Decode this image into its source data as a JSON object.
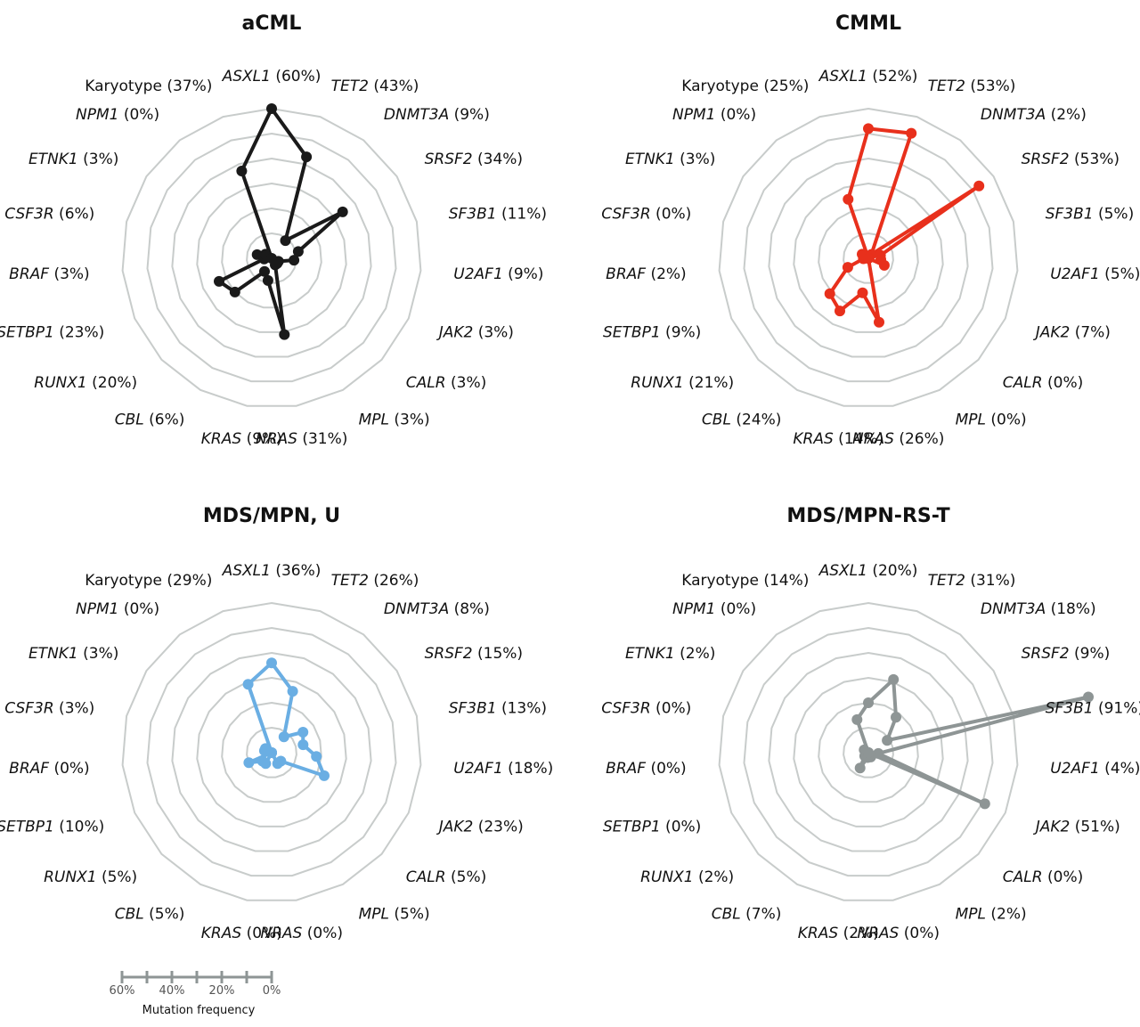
{
  "chart_data": [
    {
      "type": "radar",
      "title": "aCML",
      "color": "#1a1a1a",
      "rmax": 60,
      "axes": [
        {
          "name": "ASXL1",
          "italic": true,
          "pct": "(60%)",
          "value": 60
        },
        {
          "name": "TET2",
          "italic": true,
          "pct": "(43%)",
          "value": 43
        },
        {
          "name": "DNMT3A",
          "italic": true,
          "pct": "(9%)",
          "value": 9
        },
        {
          "name": "SRSF2",
          "italic": true,
          "pct": "(34%)",
          "value": 34
        },
        {
          "name": "SF3B1",
          "italic": true,
          "pct": "(11%)",
          "value": 11
        },
        {
          "name": "U2AF1",
          "italic": true,
          "pct": "(9%)",
          "value": 9
        },
        {
          "name": "JAK2",
          "italic": true,
          "pct": "(3%)",
          "value": 3
        },
        {
          "name": "CALR",
          "italic": true,
          "pct": "(3%)",
          "value": 3
        },
        {
          "name": "MPL",
          "italic": true,
          "pct": "(3%)",
          "value": 3
        },
        {
          "name": "NRAS",
          "italic": true,
          "pct": "(31%)",
          "value": 31
        },
        {
          "name": "KRAS",
          "italic": true,
          "pct": "(9%)",
          "value": 9
        },
        {
          "name": "CBL",
          "italic": true,
          "pct": "(6%)",
          "value": 6
        },
        {
          "name": "RUNX1",
          "italic": true,
          "pct": "(20%)",
          "value": 20
        },
        {
          "name": "SETBP1",
          "italic": true,
          "pct": "(23%)",
          "value": 23
        },
        {
          "name": "BRAF",
          "italic": true,
          "pct": "(3%)",
          "value": 3
        },
        {
          "name": "CSF3R",
          "italic": true,
          "pct": "(6%)",
          "value": 6
        },
        {
          "name": "ETNK1",
          "italic": true,
          "pct": "(3%)",
          "value": 3
        },
        {
          "name": "NPM1",
          "italic": true,
          "pct": "(0%)",
          "value": 0
        },
        {
          "name": "Karyotype",
          "italic": false,
          "pct": "(37%)",
          "value": 37
        }
      ]
    },
    {
      "type": "radar",
      "title": "CMML",
      "color": "#e8301c",
      "rmax": 60,
      "axes": [
        {
          "name": "ASXL1",
          "italic": true,
          "pct": "(52%)",
          "value": 52
        },
        {
          "name": "TET2",
          "italic": true,
          "pct": "(53%)",
          "value": 53
        },
        {
          "name": "DNMT3A",
          "italic": true,
          "pct": "(2%)",
          "value": 2
        },
        {
          "name": "SRSF2",
          "italic": true,
          "pct": "(53%)",
          "value": 53
        },
        {
          "name": "SF3B1",
          "italic": true,
          "pct": "(5%)",
          "value": 5
        },
        {
          "name": "U2AF1",
          "italic": true,
          "pct": "(5%)",
          "value": 5
        },
        {
          "name": "JAK2",
          "italic": true,
          "pct": "(7%)",
          "value": 7
        },
        {
          "name": "CALR",
          "italic": true,
          "pct": "(0%)",
          "value": 0
        },
        {
          "name": "MPL",
          "italic": true,
          "pct": "(0%)",
          "value": 0
        },
        {
          "name": "NRAS",
          "italic": true,
          "pct": "(26%)",
          "value": 26
        },
        {
          "name": "KRAS",
          "italic": true,
          "pct": "(14%)",
          "value": 14
        },
        {
          "name": "CBL",
          "italic": true,
          "pct": "(24%)",
          "value": 24
        },
        {
          "name": "RUNX1",
          "italic": true,
          "pct": "(21%)",
          "value": 21
        },
        {
          "name": "SETBP1",
          "italic": true,
          "pct": "(9%)",
          "value": 9
        },
        {
          "name": "BRAF",
          "italic": true,
          "pct": "(2%)",
          "value": 2
        },
        {
          "name": "CSF3R",
          "italic": true,
          "pct": "(0%)",
          "value": 0
        },
        {
          "name": "ETNK1",
          "italic": true,
          "pct": "(3%)",
          "value": 3
        },
        {
          "name": "NPM1",
          "italic": true,
          "pct": "(0%)",
          "value": 0
        },
        {
          "name": "Karyotype",
          "italic": false,
          "pct": "(25%)",
          "value": 25
        }
      ]
    },
    {
      "type": "radar",
      "title": "MDS/MPN, U",
      "color": "#6aaee3",
      "rmax": 60,
      "axes": [
        {
          "name": "ASXL1",
          "italic": true,
          "pct": "(36%)",
          "value": 36
        },
        {
          "name": "TET2",
          "italic": true,
          "pct": "(26%)",
          "value": 26
        },
        {
          "name": "DNMT3A",
          "italic": true,
          "pct": "(8%)",
          "value": 8
        },
        {
          "name": "SRSF2",
          "italic": true,
          "pct": "(15%)",
          "value": 15
        },
        {
          "name": "SF3B1",
          "italic": true,
          "pct": "(13%)",
          "value": 13
        },
        {
          "name": "U2AF1",
          "italic": true,
          "pct": "(18%)",
          "value": 18
        },
        {
          "name": "JAK2",
          "italic": true,
          "pct": "(23%)",
          "value": 23
        },
        {
          "name": "CALR",
          "italic": true,
          "pct": "(5%)",
          "value": 5
        },
        {
          "name": "MPL",
          "italic": true,
          "pct": "(5%)",
          "value": 5
        },
        {
          "name": "NRAS",
          "italic": true,
          "pct": "(0%)",
          "value": 0
        },
        {
          "name": "KRAS",
          "italic": true,
          "pct": "(0%)",
          "value": 0
        },
        {
          "name": "CBL",
          "italic": true,
          "pct": "(5%)",
          "value": 5
        },
        {
          "name": "RUNX1",
          "italic": true,
          "pct": "(5%)",
          "value": 5
        },
        {
          "name": "SETBP1",
          "italic": true,
          "pct": "(10%)",
          "value": 10
        },
        {
          "name": "BRAF",
          "italic": true,
          "pct": "(0%)",
          "value": 0
        },
        {
          "name": "CSF3R",
          "italic": true,
          "pct": "(3%)",
          "value": 3
        },
        {
          "name": "ETNK1",
          "italic": true,
          "pct": "(3%)",
          "value": 3
        },
        {
          "name": "NPM1",
          "italic": true,
          "pct": "(0%)",
          "value": 0
        },
        {
          "name": "Karyotype",
          "italic": false,
          "pct": "(29%)",
          "value": 29
        }
      ]
    },
    {
      "type": "radar",
      "title": "MDS/MPN-RS-T",
      "color": "#8e9595",
      "rmax": 60,
      "axes": [
        {
          "name": "ASXL1",
          "italic": true,
          "pct": "(20%)",
          "value": 20
        },
        {
          "name": "TET2",
          "italic": true,
          "pct": "(31%)",
          "value": 31
        },
        {
          "name": "DNMT3A",
          "italic": true,
          "pct": "(18%)",
          "value": 18
        },
        {
          "name": "SRSF2",
          "italic": true,
          "pct": "(9%)",
          "value": 9
        },
        {
          "name": "SF3B1",
          "italic": true,
          "pct": "(91%)",
          "value": 91
        },
        {
          "name": "U2AF1",
          "italic": true,
          "pct": "(4%)",
          "value": 4
        },
        {
          "name": "JAK2",
          "italic": true,
          "pct": "(51%)",
          "value": 51
        },
        {
          "name": "CALR",
          "italic": true,
          "pct": "(0%)",
          "value": 0
        },
        {
          "name": "MPL",
          "italic": true,
          "pct": "(2%)",
          "value": 2
        },
        {
          "name": "NRAS",
          "italic": true,
          "pct": "(0%)",
          "value": 0
        },
        {
          "name": "KRAS",
          "italic": true,
          "pct": "(2%)",
          "value": 2
        },
        {
          "name": "CBL",
          "italic": true,
          "pct": "(7%)",
          "value": 7
        },
        {
          "name": "RUNX1",
          "italic": true,
          "pct": "(2%)",
          "value": 2
        },
        {
          "name": "SETBP1",
          "italic": true,
          "pct": "(0%)",
          "value": 0
        },
        {
          "name": "BRAF",
          "italic": true,
          "pct": "(0%)",
          "value": 0
        },
        {
          "name": "CSF3R",
          "italic": true,
          "pct": "(0%)",
          "value": 0
        },
        {
          "name": "ETNK1",
          "italic": true,
          "pct": "(2%)",
          "value": 2
        },
        {
          "name": "NPM1",
          "italic": true,
          "pct": "(0%)",
          "value": 0
        },
        {
          "name": "Karyotype",
          "italic": false,
          "pct": "(14%)",
          "value": 14
        }
      ]
    }
  ],
  "scale": {
    "ticks": [
      "60%",
      "40%",
      "20%",
      "0%"
    ],
    "title": "Mutation frequency"
  },
  "colors": {
    "grid": "#c8cccb",
    "scale_bar": "#8e9595"
  }
}
